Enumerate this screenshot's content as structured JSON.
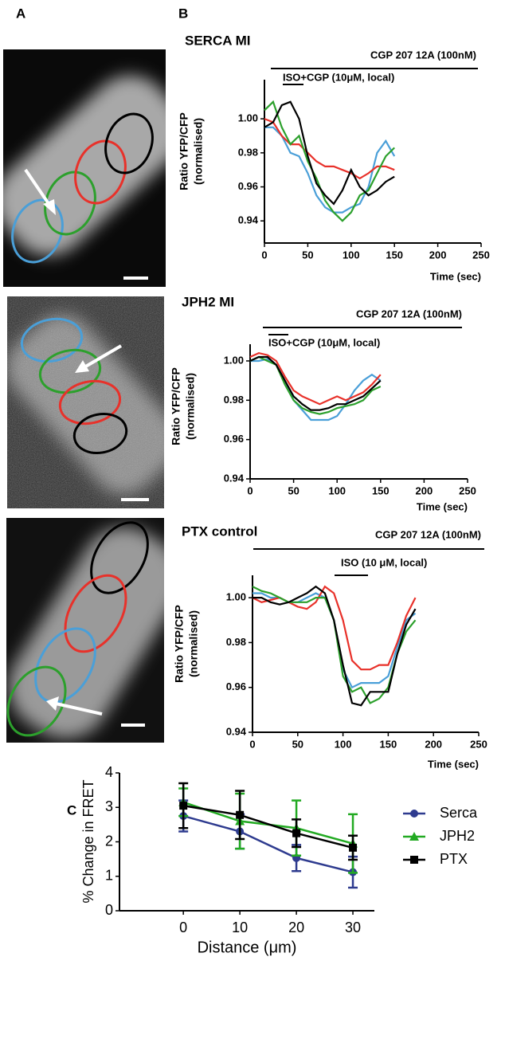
{
  "panel_labels": [
    "A",
    "B",
    "C"
  ],
  "chart_data": [
    {
      "type": "line",
      "title": "SERCA MI",
      "annotations": [
        "CGP 207 12A (100nM)",
        "ISO+CGP (10μM, local)"
      ],
      "xlabel": "Time (sec)",
      "ylabel": [
        "Ratio YFP/CFP",
        "(normalised)"
      ],
      "x": [
        0,
        10,
        20,
        30,
        40,
        50,
        60,
        70,
        80,
        90,
        100,
        110,
        120,
        130,
        140,
        150
      ],
      "series": [
        {
          "color": "#4a9fd8",
          "values": [
            0.995,
            0.995,
            0.99,
            0.98,
            0.978,
            0.968,
            0.955,
            0.948,
            0.945,
            0.945,
            0.948,
            0.95,
            0.96,
            0.98,
            0.987,
            0.978
          ]
        },
        {
          "color": "#e8312a",
          "values": [
            1.0,
            0.998,
            0.99,
            0.985,
            0.985,
            0.98,
            0.975,
            0.972,
            0.972,
            0.97,
            0.968,
            0.965,
            0.968,
            0.972,
            0.972,
            0.97
          ]
        },
        {
          "color": "#2ca02c",
          "values": [
            1.005,
            1.01,
            0.995,
            0.985,
            0.99,
            0.975,
            0.965,
            0.952,
            0.945,
            0.94,
            0.945,
            0.955,
            0.958,
            0.968,
            0.978,
            0.983
          ]
        },
        {
          "color": "#000000",
          "values": [
            0.995,
            0.998,
            1.008,
            1.01,
            1.0,
            0.978,
            0.962,
            0.955,
            0.95,
            0.958,
            0.97,
            0.96,
            0.955,
            0.958,
            0.963,
            0.966
          ]
        }
      ],
      "xlim": [
        0,
        250
      ],
      "xticks": [
        0,
        50,
        100,
        150,
        200,
        250
      ],
      "ylim": [
        0.927,
        1.023
      ],
      "yticks": [
        0.94,
        0.96,
        0.98,
        {
          "value": 1.0,
          "label": "1.00"
        }
      ],
      "grid": false
    },
    {
      "type": "line",
      "title": "JPH2 MI",
      "annotations": [
        "CGP 207 12A (100nM)",
        "ISO+CGP (10μM, local)"
      ],
      "xlabel": "Time (sec)",
      "ylabel": [
        "Ratio YFP/CFP",
        "(normalised)"
      ],
      "x": [
        0,
        10,
        20,
        30,
        40,
        50,
        60,
        70,
        80,
        90,
        100,
        110,
        120,
        130,
        140,
        150
      ],
      "series": [
        {
          "color": "#4a9fd8",
          "values": [
            1.0,
            1.0,
            1.001,
            0.998,
            0.99,
            0.98,
            0.975,
            0.97,
            0.97,
            0.97,
            0.972,
            0.978,
            0.985,
            0.99,
            0.993,
            0.99
          ]
        },
        {
          "color": "#e8312a",
          "values": [
            1.002,
            1.004,
            1.003,
            1.0,
            0.992,
            0.985,
            0.982,
            0.98,
            0.978,
            0.98,
            0.982,
            0.98,
            0.982,
            0.984,
            0.988,
            0.993
          ]
        },
        {
          "color": "#2ca02c",
          "values": [
            1.0,
            1.002,
            1.0,
            0.998,
            0.988,
            0.98,
            0.976,
            0.974,
            0.973,
            0.974,
            0.976,
            0.977,
            0.978,
            0.98,
            0.985,
            0.987
          ]
        },
        {
          "color": "#000000",
          "values": [
            1.0,
            1.002,
            1.002,
            0.998,
            0.99,
            0.982,
            0.978,
            0.975,
            0.975,
            0.976,
            0.978,
            0.978,
            0.98,
            0.982,
            0.986,
            0.99
          ]
        }
      ],
      "xlim": [
        0,
        250
      ],
      "xticks": [
        0,
        50,
        100,
        150,
        200,
        250
      ],
      "ylim": [
        0.94,
        1.0085
      ],
      "yticks": [
        0.94,
        0.96,
        0.98,
        {
          "value": 1.0,
          "label": "1.00"
        }
      ],
      "grid": false
    },
    {
      "type": "line",
      "title": "PTX control",
      "annotations": [
        "CGP 207 12A (100nM)",
        "ISO (10 μM, local)"
      ],
      "xlabel": "Time (sec)",
      "ylabel": [
        "Ratio YFP/CFP",
        "(normalised)"
      ],
      "x": [
        0,
        10,
        20,
        30,
        40,
        50,
        60,
        70,
        80,
        90,
        100,
        110,
        120,
        130,
        140,
        150,
        160,
        170,
        180
      ],
      "series": [
        {
          "color": "#4a9fd8",
          "values": [
            1.002,
            1.002,
            1.0,
            1.0,
            0.998,
            0.998,
            1.0,
            1.002,
            1.0,
            0.99,
            0.968,
            0.96,
            0.962,
            0.962,
            0.962,
            0.965,
            0.978,
            0.99,
            0.993
          ]
        },
        {
          "color": "#e8312a",
          "values": [
            1.0,
            0.998,
            0.999,
            1.0,
            0.998,
            0.996,
            0.995,
            0.998,
            1.005,
            1.002,
            0.99,
            0.972,
            0.968,
            0.968,
            0.97,
            0.97,
            0.98,
            0.992,
            1.0
          ]
        },
        {
          "color": "#2ca02c",
          "values": [
            1.005,
            1.003,
            1.002,
            1.0,
            0.998,
            0.998,
            0.998,
            1.0,
            1.0,
            0.99,
            0.965,
            0.958,
            0.96,
            0.953,
            0.955,
            0.96,
            0.975,
            0.985,
            0.99
          ]
        },
        {
          "color": "#000000",
          "values": [
            1.0,
            1.0,
            0.998,
            0.997,
            0.998,
            1.0,
            1.002,
            1.005,
            1.002,
            0.99,
            0.97,
            0.953,
            0.952,
            0.958,
            0.958,
            0.958,
            0.975,
            0.988,
            0.995
          ]
        }
      ],
      "xlim": [
        0,
        250
      ],
      "xticks": [
        0,
        50,
        100,
        150,
        200,
        250
      ],
      "ylim": [
        0.94,
        1.01
      ],
      "yticks": [
        0.94,
        0.96,
        0.98,
        {
          "value": 1.0,
          "label": "1.00"
        }
      ],
      "grid": false
    },
    {
      "type": "errorline",
      "xlabel": "Distance (μm)",
      "ylabel": "% Change in FRET",
      "x": [
        0,
        10,
        20,
        30
      ],
      "series": [
        {
          "name": "Serca",
          "color": "#2e3b8f",
          "marker": "circle",
          "values": [
            2.75,
            2.3,
            1.53,
            1.12
          ],
          "errors": [
            0.45,
            0.5,
            0.38,
            0.45
          ]
        },
        {
          "name": "JPH2",
          "color": "#22aa22",
          "marker": "triangle",
          "values": [
            3.15,
            2.6,
            2.4,
            1.95
          ],
          "errors": [
            0.4,
            0.8,
            0.8,
            0.85
          ]
        },
        {
          "name": "PTX",
          "color": "#000000",
          "marker": "square",
          "values": [
            3.05,
            2.78,
            2.25,
            1.83
          ],
          "errors": [
            0.65,
            0.7,
            0.4,
            0.35
          ]
        }
      ],
      "xlim": [
        -11.3,
        33.8
      ],
      "xticks": [
        0,
        10,
        20,
        30
      ],
      "ylim": [
        0,
        4
      ],
      "yticks": [
        0,
        1,
        2,
        3,
        4
      ],
      "grid": false,
      "legend": "right"
    }
  ]
}
